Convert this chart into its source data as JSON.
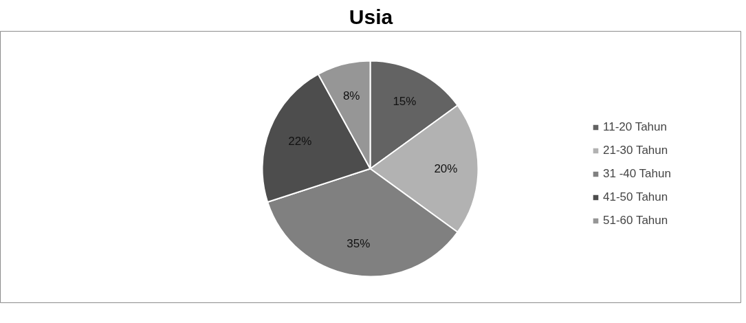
{
  "chart_data": {
    "type": "pie",
    "title": "Usia",
    "categories": [
      "11-20 Tahun",
      "21-30 Tahun",
      "31 -40 Tahun",
      "41-50 Tahun",
      "51-60 Tahun"
    ],
    "values": [
      15,
      20,
      35,
      22,
      8
    ],
    "colors": [
      "#636363",
      "#b2b2b2",
      "#808080",
      "#4d4d4d",
      "#969696"
    ],
    "value_labels": [
      "15%",
      "20%",
      "35%",
      "22%",
      "8%"
    ],
    "legend": "right"
  }
}
